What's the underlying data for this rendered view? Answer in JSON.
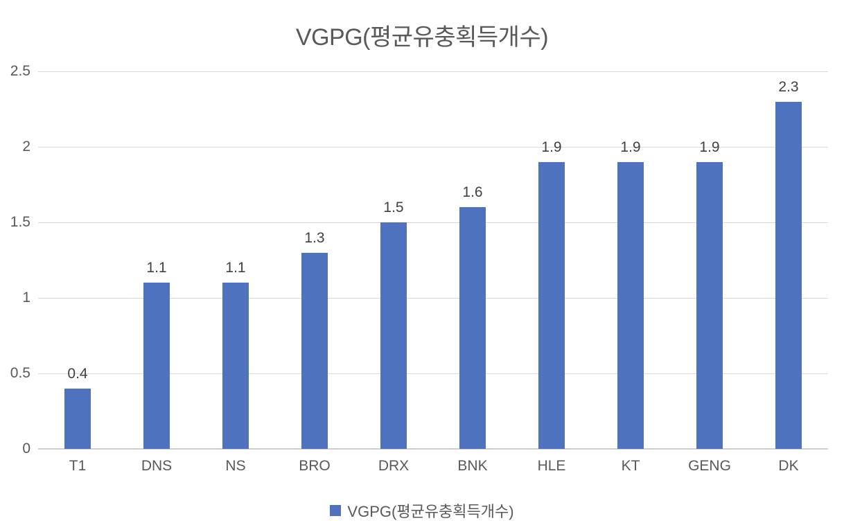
{
  "chart_data": {
    "type": "bar",
    "title": "VGPG(평균유충획득개수)",
    "legend_label": "VGPG(평균유충획득개수)",
    "legend_position": "bottom",
    "categories": [
      "T1",
      "DNS",
      "NS",
      "BRO",
      "DRX",
      "BNK",
      "HLE",
      "KT",
      "GENG",
      "DK"
    ],
    "values": [
      0.4,
      1.1,
      1.1,
      1.3,
      1.5,
      1.6,
      1.9,
      1.9,
      1.9,
      2.3
    ],
    "data_labels": [
      "0.4",
      "1.1",
      "1.1",
      "1.3",
      "1.5",
      "1.6",
      "1.9",
      "1.9",
      "1.9",
      "2.3"
    ],
    "xlabel": "",
    "ylabel": "",
    "ylim": [
      0,
      2.5
    ],
    "yticks": [
      0,
      0.5,
      1,
      1.5,
      2,
      2.5
    ],
    "ytick_labels": [
      "0",
      "0.5",
      "1",
      "1.5",
      "2",
      "2.5"
    ],
    "grid": true,
    "colors": {
      "bar": "#4F72BE",
      "gridline": "#D9D9D9",
      "axis_line": "#CFCFCF",
      "title_text": "#595959",
      "axis_text": "#595959",
      "data_label_text": "#404040",
      "background": "#FFFFFF"
    }
  }
}
